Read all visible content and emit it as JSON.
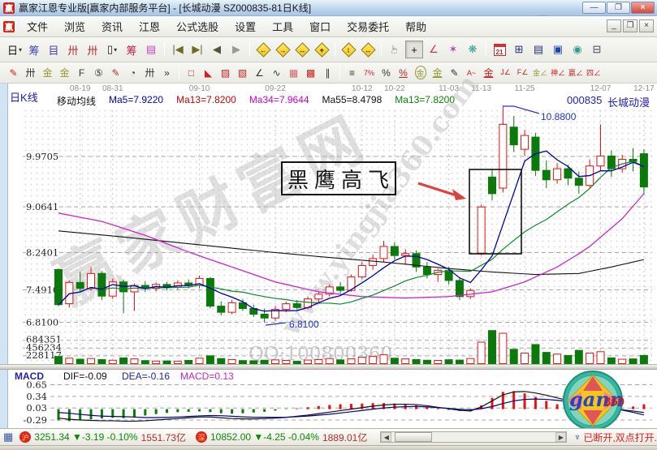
{
  "window": {
    "app_badge": "赢",
    "title": "赢家江恩专业版[赢家内部服务平台] - [长城动漫  SZ000835-81日K线]",
    "controls": {
      "minimize": "—",
      "maximize": "❐",
      "close": "×"
    },
    "mdi_controls": {
      "minimize": "_",
      "restore": "❐",
      "close": "×"
    }
  },
  "menu_bar": {
    "badge": "赢",
    "items": [
      "文件",
      "浏览",
      "资讯",
      "江恩",
      "公式选股",
      "设置",
      "工具",
      "窗口",
      "交易委托",
      "帮助"
    ]
  },
  "toolbar_top": {
    "items": [
      {
        "name": "kline-period",
        "glyph": "日",
        "color": "#111111",
        "caret": true
      },
      {
        "name": "chip-overlay",
        "glyph": "筹",
        "color": "#4444bb"
      },
      {
        "name": "info-panel",
        "glyph": "目",
        "color": "#4444bb"
      },
      {
        "name": "chart-small-3",
        "glyph": "卅",
        "color": "#bb3333"
      },
      {
        "name": "chart-small-9",
        "glyph": "卅",
        "color": "#bb3333"
      },
      {
        "name": "candle-style",
        "glyph": "▯",
        "color": "#111111",
        "caret": true
      },
      {
        "name": "chip-distribution",
        "glyph": "筹",
        "color": "#bb2255"
      },
      {
        "name": "volume-profile",
        "glyph": "▤",
        "color": "#cc44cc"
      },
      "sep",
      {
        "name": "goto-first",
        "glyph": "|◀",
        "color": "#6b6b2a"
      },
      {
        "name": "goto-last",
        "glyph": "▶|",
        "color": "#6b6b2a"
      },
      {
        "name": "page-back",
        "glyph": "◀",
        "color": "#55553a"
      },
      {
        "name": "page-forward",
        "glyph": "▶",
        "color": "#999999"
      },
      "sep",
      {
        "name": "zoom-left",
        "glyph": "←",
        "diamond": true
      },
      {
        "name": "zoom-right",
        "glyph": "→",
        "diamond": true
      },
      {
        "name": "zoom-horizontal",
        "glyph": "↔",
        "diamond": true
      },
      {
        "name": "zoom-all",
        "glyph": "+",
        "diamond": true
      },
      "sep",
      {
        "name": "zoom-expand",
        "glyph": "↕",
        "diamond": true
      },
      {
        "name": "zoom-compress",
        "glyph": "↔",
        "diamond": true
      },
      "sep",
      {
        "name": "hand-tool",
        "glyph": "☞",
        "color": "#333333",
        "rotate": -90
      },
      {
        "name": "crosshair-tool",
        "glyph": "+",
        "color": "#111111",
        "pressed": true
      },
      {
        "name": "line-tool",
        "glyph": "∠",
        "color": "#cc3355"
      },
      {
        "name": "gann-tool",
        "glyph": "✶",
        "color": "#bb44bb"
      },
      {
        "name": "pattern-tool",
        "glyph": "❋",
        "color": "#2a9d8f"
      },
      "sep",
      {
        "name": "calendar-tool",
        "glyph": "21",
        "calendar": true
      },
      {
        "name": "calculator-tool",
        "glyph": "⊞",
        "color": "#223377"
      },
      {
        "name": "notes-tool",
        "glyph": "▤",
        "color": "#223377"
      },
      {
        "name": "save-tool",
        "glyph": "▣",
        "color": "#2244aa"
      },
      {
        "name": "refresh-tool",
        "glyph": "◉",
        "color": "#2a9d8f"
      },
      {
        "name": "print-tool",
        "glyph": "⊟",
        "color": "#444466"
      }
    ]
  },
  "toolbar_draw": {
    "items": [
      {
        "name": "pen-tool",
        "glyph": "✎",
        "color": "#cc2222"
      },
      {
        "name": "cycle-grid",
        "glyph": "卅",
        "color": "#333333"
      },
      {
        "name": "golden-grid-price",
        "glyph": "金",
        "color": "#999933"
      },
      {
        "name": "golden-grid-time",
        "glyph": "金",
        "color": "#999933"
      },
      {
        "name": "fib-grid",
        "glyph": "F",
        "color": "#333333"
      },
      {
        "name": "spiral-grid",
        "glyph": "⑤",
        "color": "#333333"
      },
      {
        "name": "pen-grid",
        "glyph": "✎",
        "color": "#aa3333"
      },
      {
        "name": "time-cycle",
        "glyph": "◔",
        "color": "#333333"
      },
      {
        "name": "bars-grid",
        "glyph": "卅",
        "color": "#333333"
      },
      {
        "name": "more-tools",
        "glyph": "»",
        "color": "#333333"
      },
      "sep",
      {
        "name": "box-tool",
        "glyph": "□",
        "color": "#aa3333"
      },
      {
        "name": "fan-lines",
        "glyph": "◣",
        "color": "#cc2222"
      },
      {
        "name": "fan-box",
        "glyph": "▨",
        "color": "#cc2222"
      },
      {
        "name": "fan-box-dense",
        "glyph": "▧",
        "color": "#cc2222"
      },
      {
        "name": "angle-lines",
        "glyph": "∠",
        "color": "#333333"
      },
      {
        "name": "wave-tool",
        "glyph": "∿",
        "color": "#333333"
      },
      {
        "name": "grid-tool",
        "glyph": "▦",
        "color": "#cc6666"
      },
      {
        "name": "grid-dense",
        "glyph": "▩",
        "color": "#cc2222"
      },
      {
        "name": "parallel-lines",
        "glyph": "∥",
        "color": "#333333"
      },
      "sep",
      {
        "name": "price-bars",
        "glyph": "≡",
        "color": "#333333"
      },
      {
        "name": "percent-retrace",
        "glyph": "7%",
        "color": "#cc2222",
        "small": true
      },
      {
        "name": "percent-tool",
        "glyph": "%",
        "color": "#333333"
      },
      {
        "name": "percent-line",
        "glyph": "%",
        "color": "#cc2222",
        "underline": true
      },
      {
        "name": "golden-circle",
        "glyph": "金",
        "color": "#999933",
        "circle": true
      },
      {
        "name": "golden-line",
        "glyph": "金",
        "color": "#999933",
        "underline": true
      },
      {
        "name": "pen-bars",
        "glyph": "✎",
        "color": "#333333"
      },
      {
        "name": "wave-abc",
        "glyph": "A~",
        "color": "#cc2222",
        "small": true
      },
      {
        "name": "golden-underline",
        "glyph": "金",
        "color": "#cc2222",
        "underline": true
      },
      {
        "name": "angle-j",
        "glyph": "J∠",
        "color": "#cc2222",
        "small": true
      },
      {
        "name": "angle-f",
        "glyph": "F∠",
        "color": "#cc2222",
        "small": true
      },
      {
        "name": "angle-gold",
        "glyph": "金∠",
        "color": "#999933",
        "small": true
      },
      {
        "name": "angle-shen",
        "glyph": "神∠",
        "color": "#cc2222",
        "small": true
      },
      {
        "name": "angle-ying",
        "glyph": "嬴∠",
        "color": "#cc2222",
        "small": true
      },
      {
        "name": "angle-si",
        "glyph": "四∠",
        "color": "#cc2222",
        "small": true
      }
    ]
  },
  "chart_header": {
    "pane_label": "日K线",
    "ma_title": "移动均线",
    "ma_items": [
      {
        "label": "Ma5=7.9220",
        "color": "#0000cc"
      },
      {
        "label": "Ma13=7.8200",
        "color": "#cc0000"
      },
      {
        "label": "Ma34=7.9644",
        "color": "#cc00cc"
      },
      {
        "label": "Ma55=8.4798",
        "color": "#111111"
      },
      {
        "label": "Ma13=7.8200",
        "color": "#008800"
      }
    ],
    "stock_code": "000835",
    "stock_name": "长城动漫"
  },
  "chart_data": {
    "type": "candlestick",
    "symbol": "SZ000835",
    "name": "长城动漫",
    "period": "日K线",
    "x_ticks": {
      "labels": [
        "08-19",
        "08-31",
        "09-10",
        "09-22",
        "10-12",
        "10-22",
        "11-03",
        "11-13",
        "11-25",
        "12-07",
        "12-17"
      ],
      "indices": [
        2,
        5,
        13,
        20,
        28,
        31,
        36,
        39,
        43,
        50,
        54
      ]
    },
    "y_axis": {
      "price_ticks": [
        9.9705,
        9.0641,
        8.2401,
        7.491,
        6.81
      ],
      "volume_ticks": [
        684351,
        456234,
        228117
      ]
    },
    "candles": [
      [
        7.9,
        7.92,
        7.15,
        7.18
      ],
      [
        7.2,
        7.68,
        7.12,
        7.64
      ],
      [
        7.64,
        7.85,
        7.45,
        7.52
      ],
      [
        7.52,
        7.95,
        7.48,
        7.82
      ],
      [
        7.82,
        7.86,
        7.28,
        7.36
      ],
      [
        7.36,
        7.72,
        7.3,
        7.65
      ],
      [
        7.65,
        7.7,
        7.0,
        7.45
      ],
      [
        7.45,
        7.62,
        7.05,
        7.58
      ],
      [
        7.58,
        7.66,
        7.45,
        7.52
      ],
      [
        7.52,
        7.64,
        7.46,
        7.6
      ],
      [
        7.6,
        7.65,
        7.48,
        7.55
      ],
      [
        7.55,
        7.68,
        7.5,
        7.63
      ],
      [
        7.63,
        7.7,
        7.52,
        7.58
      ],
      [
        7.58,
        7.78,
        7.52,
        7.72
      ],
      [
        7.72,
        7.75,
        7.1,
        7.15
      ],
      [
        7.15,
        7.25,
        6.95,
        7.02
      ],
      [
        7.02,
        7.28,
        6.98,
        7.22
      ],
      [
        7.22,
        7.3,
        7.05,
        7.1
      ],
      [
        7.1,
        7.18,
        6.92,
        6.98
      ],
      [
        6.98,
        7.1,
        6.81,
        6.9
      ],
      [
        6.9,
        7.15,
        6.84,
        7.08
      ],
      [
        7.08,
        7.25,
        7.02,
        7.2
      ],
      [
        7.2,
        7.28,
        7.08,
        7.12
      ],
      [
        7.12,
        7.35,
        7.08,
        7.3
      ],
      [
        7.3,
        7.45,
        7.22,
        7.4
      ],
      [
        7.4,
        7.6,
        7.35,
        7.55
      ],
      [
        7.55,
        7.65,
        7.42,
        7.48
      ],
      [
        7.48,
        7.8,
        7.45,
        7.75
      ],
      [
        7.75,
        8.05,
        7.7,
        7.98
      ],
      [
        7.98,
        8.2,
        7.9,
        8.12
      ],
      [
        8.12,
        8.45,
        8.05,
        8.35
      ],
      [
        8.35,
        8.42,
        8.1,
        8.18
      ],
      [
        8.18,
        8.3,
        8.0,
        8.22
      ],
      [
        8.22,
        8.28,
        7.85,
        7.95
      ],
      [
        7.95,
        8.05,
        7.72,
        7.8
      ],
      [
        7.8,
        7.92,
        7.65,
        7.88
      ],
      [
        7.88,
        7.95,
        7.6,
        7.68
      ],
      [
        7.68,
        7.72,
        7.28,
        7.35
      ],
      [
        7.35,
        7.52,
        7.3,
        7.48
      ],
      [
        8.23,
        9.1,
        8.18,
        9.06
      ],
      [
        9.6,
        9.75,
        9.18,
        9.3
      ],
      [
        9.4,
        10.88,
        9.32,
        10.55
      ],
      [
        10.5,
        10.7,
        10.05,
        10.18
      ],
      [
        10.1,
        10.45,
        9.98,
        10.35
      ],
      [
        10.32,
        10.4,
        9.62,
        9.72
      ],
      [
        9.72,
        9.9,
        9.4,
        9.55
      ],
      [
        9.55,
        9.85,
        9.48,
        9.75
      ],
      [
        9.75,
        9.82,
        9.45,
        9.58
      ],
      [
        9.58,
        9.7,
        9.3,
        9.45
      ],
      [
        9.45,
        9.92,
        9.4,
        9.8
      ],
      [
        9.8,
        10.55,
        9.7,
        9.98
      ],
      [
        9.98,
        10.08,
        9.6,
        9.75
      ],
      [
        9.75,
        10.0,
        9.68,
        9.92
      ],
      [
        9.92,
        10.12,
        9.7,
        9.88
      ],
      [
        10.02,
        10.1,
        9.28,
        9.42
      ]
    ],
    "volumes": [
      210000,
      160000,
      130000,
      150000,
      120000,
      100000,
      170000,
      140000,
      90000,
      75000,
      80000,
      70000,
      95000,
      160000,
      230000,
      150000,
      120000,
      90000,
      85000,
      100000,
      110000,
      95000,
      70000,
      105000,
      120000,
      150000,
      110000,
      140000,
      190000,
      210000,
      260000,
      160000,
      140000,
      120000,
      100000,
      95000,
      115000,
      105000,
      150000,
      630000,
      970000,
      890000,
      420000,
      310000,
      560000,
      330000,
      280000,
      240000,
      390000,
      310000,
      350000,
      170000,
      130000,
      140000,
      240000
    ],
    "ma_overlays": {
      "ma34_keypoints": [
        [
          0,
          8.95
        ],
        [
          4,
          8.8
        ],
        [
          8,
          8.55
        ],
        [
          12,
          8.25
        ],
        [
          16,
          7.95
        ],
        [
          20,
          7.65
        ],
        [
          24,
          7.45
        ],
        [
          28,
          7.35
        ],
        [
          32,
          7.32
        ],
        [
          36,
          7.35
        ],
        [
          40,
          7.45
        ],
        [
          43,
          7.65
        ],
        [
          46,
          7.95
        ],
        [
          49,
          8.35
        ],
        [
          52,
          8.85
        ],
        [
          54,
          9.3
        ]
      ],
      "ma55_keypoints": [
        [
          0,
          8.63
        ],
        [
          6,
          8.52
        ],
        [
          12,
          8.4
        ],
        [
          18,
          8.28
        ],
        [
          24,
          8.16
        ],
        [
          30,
          8.05
        ],
        [
          36,
          7.92
        ],
        [
          40,
          7.85
        ],
        [
          44,
          7.8
        ],
        [
          48,
          7.82
        ],
        [
          51,
          7.95
        ],
        [
          54,
          8.1
        ]
      ]
    },
    "annotations": {
      "pattern_label": "黑鹰高飞",
      "peak_price_label": "10.8800",
      "low_price_label": "6.8100"
    },
    "watermarks": {
      "site_name": "赢家财富网",
      "site_url": "www.yingjia360.com",
      "qq": "QQ:100800360"
    },
    "colors": {
      "up": "#e81212",
      "down": "#0b7a0b",
      "ma5": "#0000aa",
      "ma13": "#0a8a2a",
      "ma34": "#cc22cc",
      "ma55": "#111111"
    },
    "macd": {
      "y_ticks": [
        0.65,
        0.34,
        0.03,
        -0.29
      ],
      "dif": [
        -0.24,
        -0.27,
        -0.29,
        -0.3,
        -0.31,
        -0.31,
        -0.32,
        -0.32,
        -0.31,
        -0.29,
        -0.27,
        -0.25,
        -0.23,
        -0.21,
        -0.21,
        -0.23,
        -0.25,
        -0.26,
        -0.26,
        -0.25,
        -0.24,
        -0.22,
        -0.19,
        -0.16,
        -0.12,
        -0.08,
        -0.04,
        0.0,
        0.04,
        0.08,
        0.11,
        0.13,
        0.13,
        0.12,
        0.09,
        0.05,
        0.01,
        -0.03,
        -0.05,
        0.06,
        0.22,
        0.38,
        0.46,
        0.47,
        0.43,
        0.37,
        0.3,
        0.23,
        0.16,
        0.1,
        0.05,
        0.01,
        -0.02,
        -0.05,
        -0.09
      ],
      "hist": [
        -0.3,
        -0.32,
        -0.3,
        -0.27,
        -0.25,
        -0.23,
        -0.24,
        -0.22,
        -0.17,
        -0.13,
        -0.1,
        -0.08,
        -0.07,
        -0.06,
        -0.08,
        -0.11,
        -0.12,
        -0.11,
        -0.09,
        -0.07,
        -0.04,
        -0.01,
        0.02,
        0.05,
        0.08,
        0.11,
        0.13,
        0.14,
        0.15,
        0.16,
        0.16,
        0.15,
        0.13,
        0.1,
        0.06,
        0.02,
        -0.02,
        -0.05,
        -0.06,
        0.1,
        0.3,
        0.46,
        0.48,
        0.42,
        0.32,
        0.22,
        0.13,
        0.05,
        -0.02,
        -0.07,
        -0.09,
        -0.05,
        0.01,
        0.07,
        0.13
      ]
    }
  },
  "macd_panel": {
    "label": "MACD",
    "values": [
      {
        "label": "DIF=-0.09",
        "color": "#111111"
      },
      {
        "label": "DEA=-0.16",
        "color": "#2222aa"
      },
      {
        "label": "MACD=0.13",
        "color": "#cc22cc"
      }
    ]
  },
  "status_bar": {
    "sheet_icon": "▦",
    "indices": [
      {
        "badge": "沪",
        "value": "3251.34",
        "arrow": "▼",
        "change": "-3.19",
        "pct": "-0.10%",
        "amount": "1551.73亿"
      },
      {
        "badge": "深",
        "value": "10852.00",
        "arrow": "▼",
        "change": "-4.25",
        "pct": "-0.04%",
        "amount": "1889.01亿"
      }
    ],
    "antenna_icon": "♆",
    "connection": "已断开,双点打开."
  },
  "logo": {
    "text_gann": "gann",
    "text_360": "360"
  }
}
